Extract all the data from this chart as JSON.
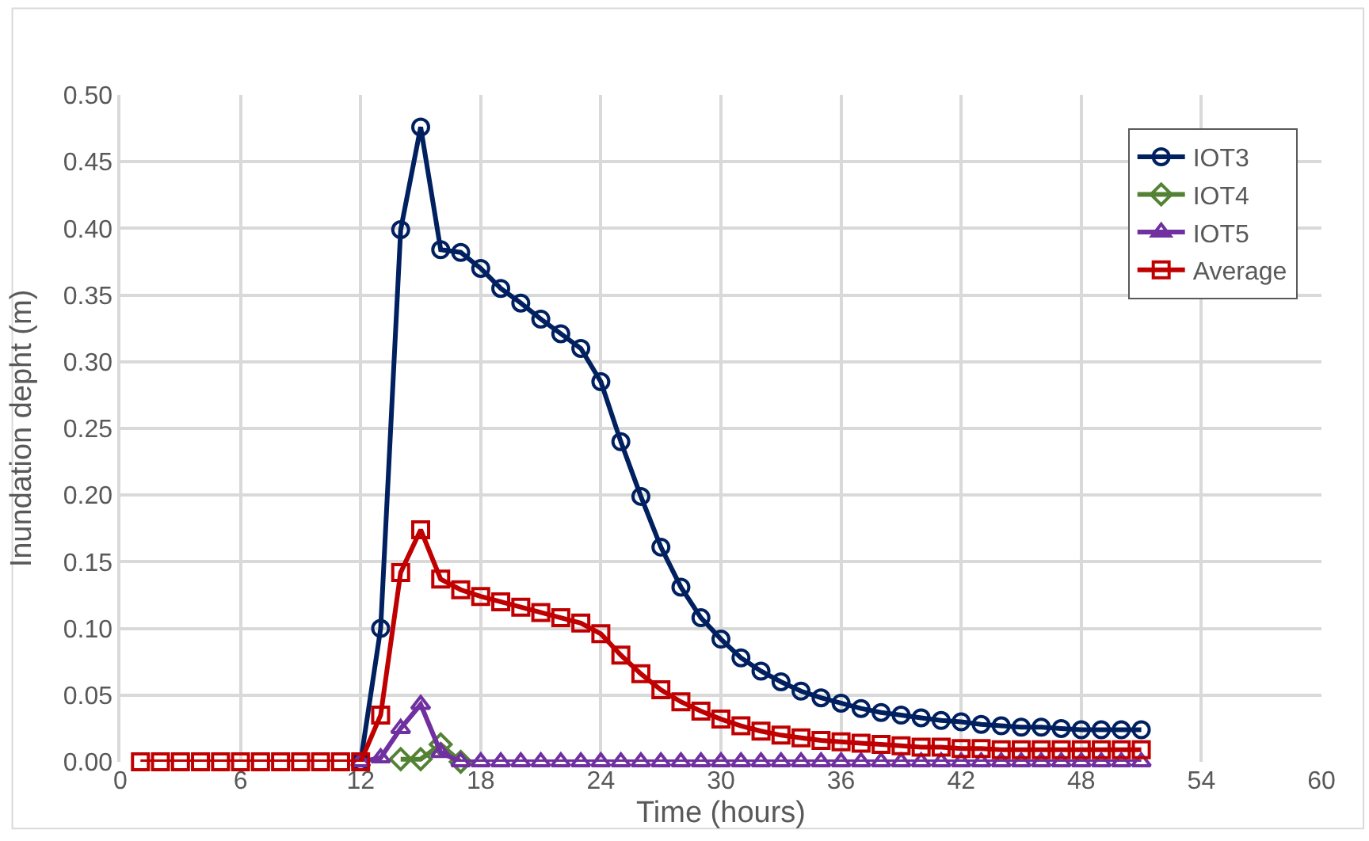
{
  "chart_data": {
    "type": "line",
    "xlabel": "Time (hours)",
    "ylabel": "Inundation depht (m)",
    "x": [
      1,
      2,
      3,
      4,
      5,
      6,
      7,
      8,
      9,
      10,
      11,
      12,
      13,
      14,
      15,
      16,
      17,
      18,
      19,
      20,
      21,
      22,
      23,
      24,
      25,
      26,
      27,
      28,
      29,
      30,
      31,
      32,
      33,
      34,
      35,
      36,
      37,
      38,
      39,
      40,
      41,
      42,
      43,
      44,
      45,
      46,
      47,
      48,
      49,
      50,
      51
    ],
    "series": [
      {
        "name": "IOT3",
        "color": "#002060",
        "marker": "circle",
        "values": [
          null,
          null,
          null,
          null,
          null,
          null,
          null,
          null,
          null,
          null,
          null,
          0,
          0.1,
          0.399,
          0.476,
          0.384,
          0.382,
          0.37,
          0.355,
          0.344,
          0.332,
          0.321,
          0.31,
          0.285,
          0.24,
          0.199,
          0.161,
          0.131,
          0.108,
          0.092,
          0.078,
          0.068,
          0.06,
          0.053,
          0.048,
          0.044,
          0.04,
          0.037,
          0.035,
          0.033,
          0.031,
          0.03,
          0.028,
          0.027,
          0.026,
          0.026,
          0.025,
          0.024,
          0.024,
          0.024,
          0.024
        ]
      },
      {
        "name": "IOT4",
        "color": "#548235",
        "marker": "diamond",
        "values": [
          null,
          null,
          null,
          null,
          null,
          null,
          null,
          null,
          null,
          null,
          null,
          null,
          null,
          0.002,
          0.002,
          0.013,
          0,
          null,
          null,
          null,
          null,
          null,
          null,
          null,
          null,
          null,
          null,
          null,
          null,
          null,
          null,
          null,
          null,
          null,
          null,
          null,
          null,
          null,
          null,
          null,
          null,
          null,
          null,
          null,
          null,
          null,
          null,
          null,
          null,
          null,
          null
        ]
      },
      {
        "name": "IOT5",
        "color": "#7030a0",
        "marker": "triangle",
        "values": [
          null,
          null,
          null,
          null,
          null,
          null,
          null,
          null,
          null,
          null,
          null,
          0,
          0.003,
          0.025,
          0.043,
          0.007,
          0,
          0,
          0,
          0,
          0,
          0,
          0,
          0,
          0,
          0,
          0,
          0,
          0,
          0,
          0,
          0,
          0,
          0,
          0,
          0,
          0,
          0,
          0,
          0,
          0,
          0,
          0,
          0,
          0,
          0,
          0,
          0,
          0,
          0,
          0
        ]
      },
      {
        "name": "Average",
        "color": "#c00000",
        "marker": "square",
        "values": [
          0,
          0,
          0,
          0,
          0,
          0,
          0,
          0,
          0,
          0,
          0,
          0,
          0.035,
          0.142,
          0.174,
          0.137,
          0.129,
          0.124,
          0.12,
          0.116,
          0.112,
          0.108,
          0.104,
          0.096,
          0.08,
          0.066,
          0.054,
          0.045,
          0.038,
          0.032,
          0.027,
          0.023,
          0.02,
          0.018,
          0.016,
          0.015,
          0.014,
          0.013,
          0.012,
          0.011,
          0.011,
          0.01,
          0.01,
          0.009,
          0.009,
          0.009,
          0.009,
          0.009,
          0.009,
          0.009,
          0.009
        ]
      }
    ],
    "xlim": [
      0,
      60
    ],
    "xticks": [
      0,
      6,
      12,
      18,
      24,
      30,
      36,
      42,
      48,
      54,
      60
    ],
    "ylim": [
      0,
      0.5
    ],
    "yticks": [
      {
        "value": 0,
        "label": "0.00"
      },
      {
        "value": 0.05,
        "label": "0.05"
      },
      {
        "value": 0.1,
        "label": "0.10"
      },
      {
        "value": 0.15,
        "label": "0.15"
      },
      {
        "value": 0.2,
        "label": "0.20"
      },
      {
        "value": 0.25,
        "label": "0.25"
      },
      {
        "value": 0.3,
        "label": "0.30"
      },
      {
        "value": 0.35,
        "label": "0.35"
      },
      {
        "value": 0.4,
        "label": "0.40"
      },
      {
        "value": 0.45,
        "label": "0.45"
      },
      {
        "value": 0.5,
        "label": "0.50"
      }
    ],
    "grid": true,
    "legend": "top right",
    "line_style": "solid"
  }
}
